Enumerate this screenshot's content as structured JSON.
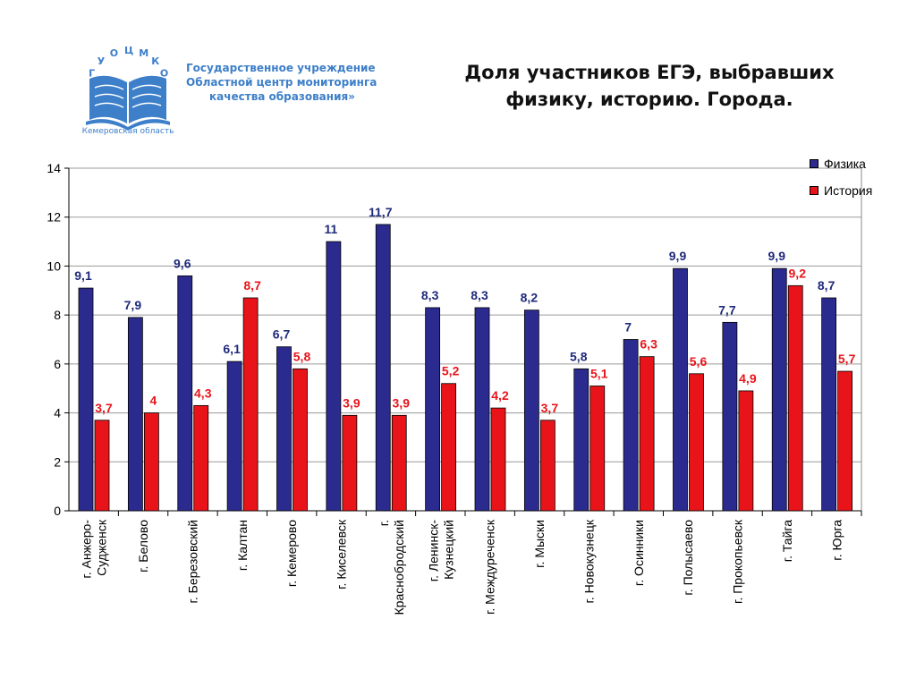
{
  "header": {
    "logo_text": "ГУОЦМКО",
    "org_lines": [
      "Государственное учреждение",
      "Областной центр мониторинга",
      "качества образования»"
    ],
    "region": "Кемеровская область",
    "title_lines": [
      "Доля участников ЕГЭ, выбравших",
      "физику, историю. Города."
    ]
  },
  "colors": {
    "physics": "#2b2b8f",
    "history": "#e8141a",
    "physics_label": "#1f2a7a",
    "history_label": "#e8141a",
    "logo": "#3d7fc9"
  },
  "chart_data": {
    "type": "bar",
    "categories": [
      "г. Анжеро-Судженск",
      "г. Белово",
      "г. Березовский",
      "г. Калтан",
      "г. Кемерово",
      "г. Киселевск",
      "г. Краснобродский",
      "г. Ленинск-Кузнецкий",
      "г. Междуреченск",
      "г. Мыски",
      "г. Новокузнецк",
      "г. Осинники",
      "г. Полысаево",
      "г. Прокопьевск",
      "г. Тайга",
      "г. Юрга"
    ],
    "category_lines": [
      [
        "г. Анжеро-",
        "Судженск"
      ],
      [
        "г. Белово"
      ],
      [
        "г. Березовский"
      ],
      [
        "г. Калтан"
      ],
      [
        "г. Кемерово"
      ],
      [
        "г. Киселевск"
      ],
      [
        "г.",
        "Краснобродский"
      ],
      [
        "г. Ленинск-",
        "Кузнецкий"
      ],
      [
        "г. Междуреченск"
      ],
      [
        "г. Мыски"
      ],
      [
        "г. Новокузнецк"
      ],
      [
        "г. Осинники"
      ],
      [
        "г. Полысаево"
      ],
      [
        "г. Прокопьевск"
      ],
      [
        "г. Тайга"
      ],
      [
        "г. Юрга"
      ]
    ],
    "series": [
      {
        "name": "Физика",
        "values": [
          9.1,
          7.9,
          9.6,
          6.1,
          6.7,
          11,
          11.7,
          8.3,
          8.3,
          8.2,
          5.8,
          7,
          9.9,
          7.7,
          9.9,
          8.7
        ],
        "labels": [
          "9,1",
          "7,9",
          "9,6",
          "6,1",
          "6,7",
          "11",
          "11,7",
          "8,3",
          "8,3",
          "8,2",
          "5,8",
          "7",
          "9,9",
          "7,7",
          "9,9",
          "8,7"
        ]
      },
      {
        "name": "История",
        "values": [
          3.7,
          4,
          4.3,
          8.7,
          5.8,
          3.9,
          3.9,
          5.2,
          4.2,
          3.7,
          5.1,
          6.3,
          5.6,
          4.9,
          9.2,
          5.7
        ],
        "labels": [
          "3,7",
          "4",
          "4,3",
          "8,7",
          "5,8",
          "3,9",
          "3,9",
          "5,2",
          "4,2",
          "3,7",
          "5,1",
          "6,3",
          "5,6",
          "4,9",
          "9,2",
          "5,7"
        ]
      }
    ],
    "ylim": [
      0,
      14
    ],
    "yticks": [
      0,
      2,
      4,
      6,
      8,
      10,
      12,
      14
    ],
    "grid": true,
    "legend_position": "top-right",
    "xlabel": "",
    "ylabel": ""
  }
}
